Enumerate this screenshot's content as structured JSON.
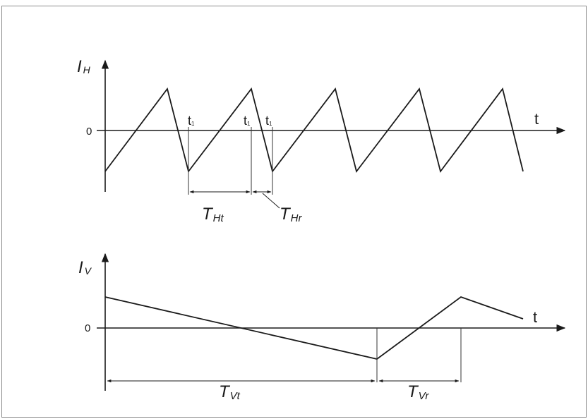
{
  "top_graph": {
    "y_axis_label": "I",
    "y_axis_subscript": "H",
    "x_axis_label": "t",
    "zero_label": "0",
    "marker_label": "t",
    "marker_subscript": "1",
    "trace_period_label": "T",
    "trace_period_subscript": "Ht",
    "retrace_period_label": "T",
    "retrace_period_subscript": "Hr"
  },
  "bottom_graph": {
    "y_axis_label": "I",
    "y_axis_subscript": "V",
    "x_axis_label": "t",
    "zero_label": "0",
    "trace_period_label": "T",
    "trace_period_subscript": "Vt",
    "retrace_period_label": "T",
    "retrace_period_subscript": "Vr"
  },
  "colors": {
    "line": "#1a1a1a",
    "thin_line": "#333333",
    "frame_border": "#8c8c8c"
  }
}
